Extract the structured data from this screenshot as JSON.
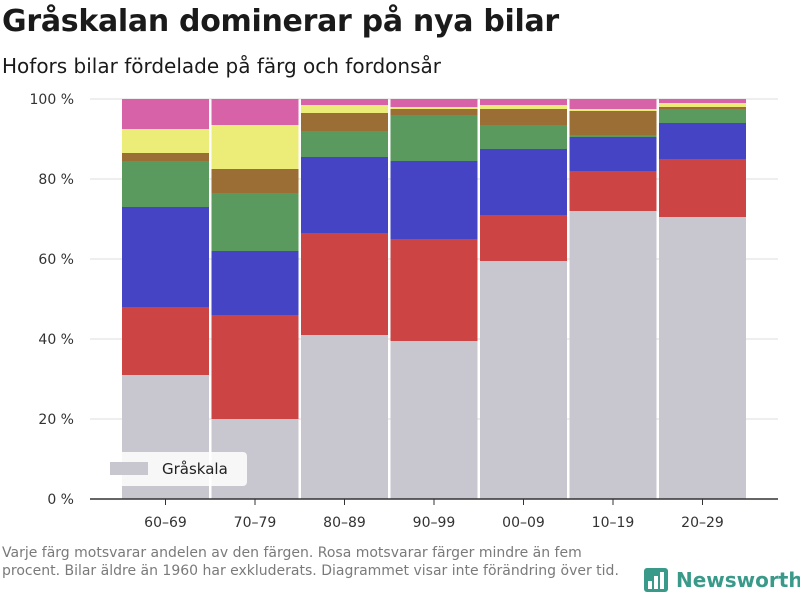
{
  "header": {
    "title": "Gråskalan dominerar på nya bilar",
    "subtitle": "Hofors bilar fördelade på färg och fordonsår"
  },
  "footnote": "Varje färg motsvarar andelen av den färgen. Rosa motsvarar färger mindre än fem procent. Bilar äldre än 1960 har exkluderats. Diagrammet visar inte förändring över tid.",
  "brand": {
    "name": "Newsworthy",
    "icon": "bar-chart-icon",
    "color": "#3a9a8a"
  },
  "chart_data": {
    "type": "bar",
    "stacked": true,
    "categories": [
      "60–69",
      "70–79",
      "80–89",
      "90–99",
      "00–09",
      "10–19",
      "20–29"
    ],
    "ylim": [
      0,
      100
    ],
    "yticks": [
      0,
      20,
      40,
      60,
      80,
      100
    ],
    "ytick_labels": [
      "0 %",
      "20 %",
      "40 %",
      "60 %",
      "80 %",
      "100 %"
    ],
    "grid": true,
    "legend": {
      "position": "bottom-left",
      "entries": [
        "Gråskala"
      ]
    },
    "series": [
      {
        "name": "Gråskala",
        "color": "#c8c7cf",
        "values": [
          31,
          20,
          41,
          39.5,
          59.5,
          72,
          70.5
        ]
      },
      {
        "color": "#cc4444",
        "values": [
          17,
          26,
          25.5,
          25.5,
          11.5,
          10,
          14.5
        ]
      },
      {
        "color": "#4444c4",
        "values": [
          25,
          16,
          19,
          19.5,
          16.5,
          8.5,
          9
        ]
      },
      {
        "color": "#5a9a5e",
        "values": [
          11.5,
          14.5,
          6.5,
          11.5,
          6,
          0.5,
          3.5
        ]
      },
      {
        "color": "#9a6e34",
        "values": [
          2,
          6,
          4.5,
          1.5,
          4,
          6,
          0.5
        ]
      },
      {
        "color": "#ecec78",
        "values": [
          6,
          11,
          2,
          0.5,
          1,
          0.5,
          1
        ]
      },
      {
        "color": "#d862a8",
        "values": [
          7.5,
          6.5,
          1.5,
          2,
          1.5,
          2.5,
          1
        ]
      }
    ]
  }
}
